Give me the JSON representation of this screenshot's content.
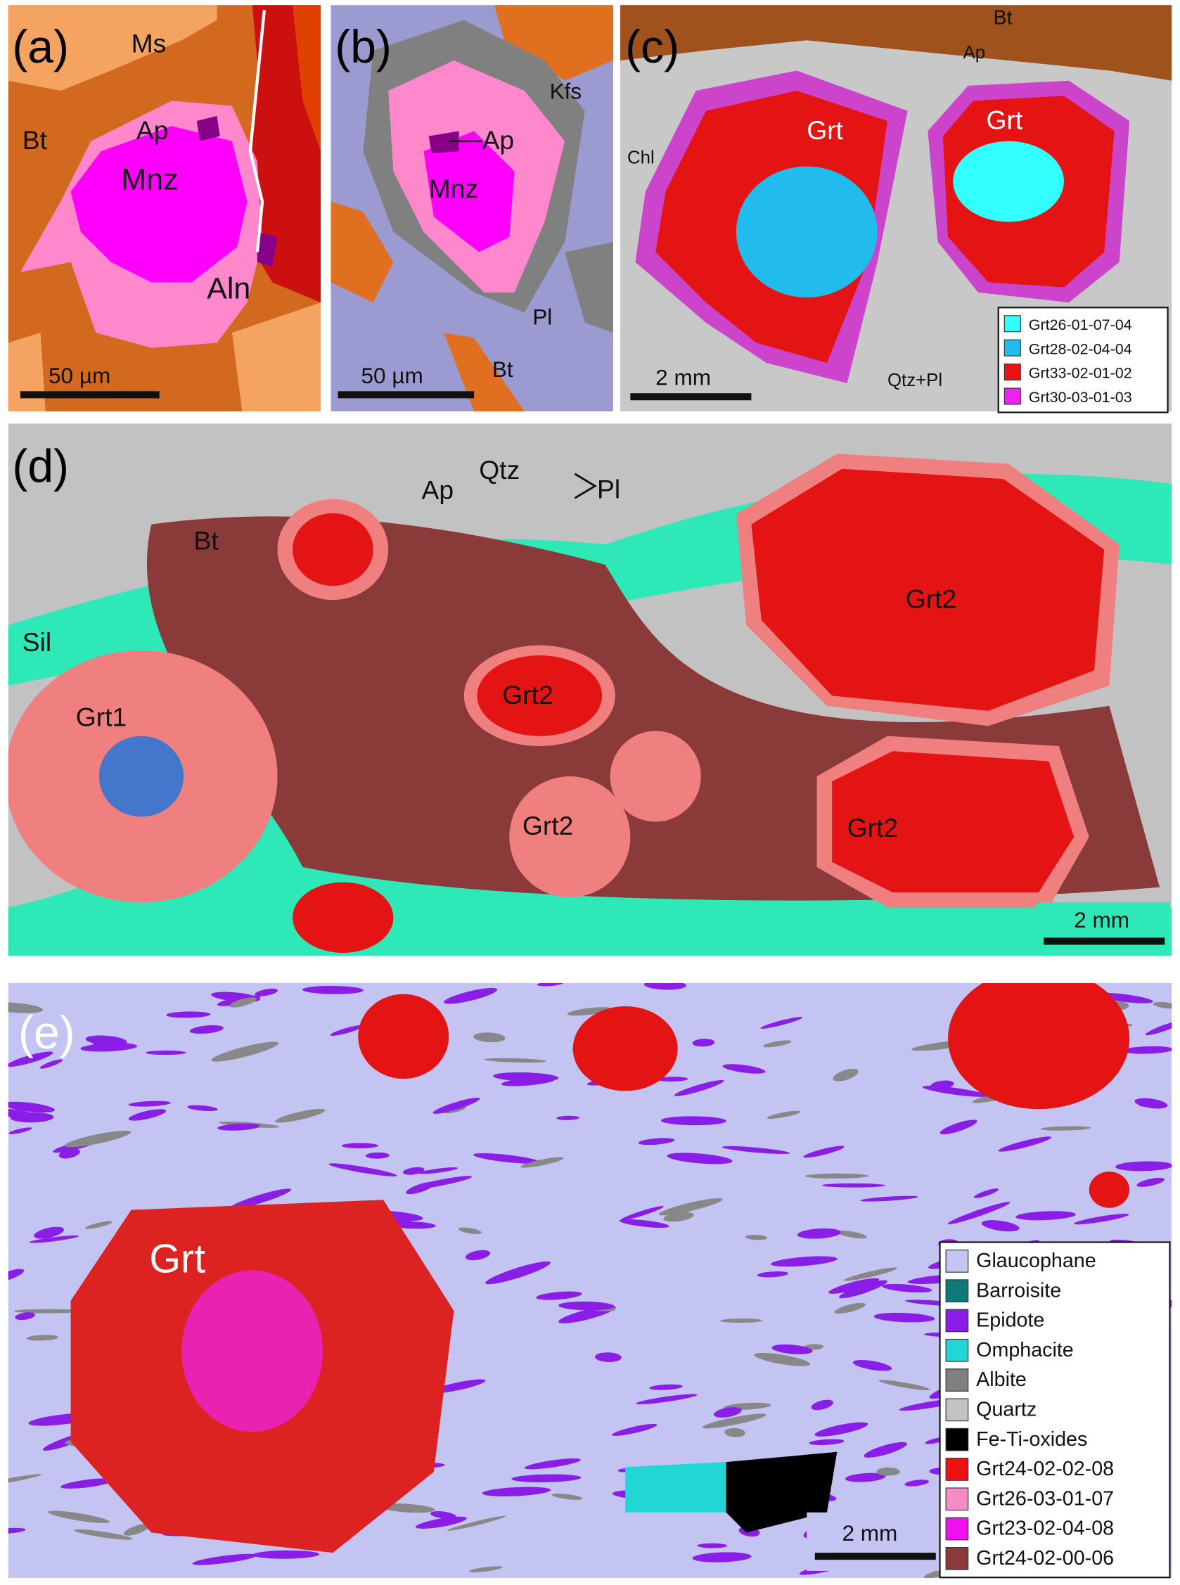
{
  "panel_a": {
    "label": "(a)",
    "scale_bar": "50 µm",
    "labels": [
      "Ms",
      "Bt",
      "Ap",
      "Mnz",
      "Aln"
    ]
  },
  "panel_b": {
    "label": "(b)",
    "scale_bar": "50 µm",
    "labels": [
      "Kfs",
      "Ap",
      "Mnz",
      "Pl",
      "Bt"
    ]
  },
  "panel_c": {
    "label": "(c)",
    "scale_bar": "2 mm",
    "labels": [
      "Bt",
      "Ap",
      "Grt",
      "Grt",
      "Chl",
      "Qtz+Pl"
    ],
    "legend": [
      {
        "name": "Grt26-01-07-04",
        "color": "#33ffff"
      },
      {
        "name": "Grt28-02-04-04",
        "color": "#22bbee"
      },
      {
        "name": "Grt33-02-01-02",
        "color": "#ee1111"
      },
      {
        "name": "Grt30-03-01-03",
        "color": "#ee22ee"
      }
    ]
  },
  "panel_d": {
    "label": "(d)",
    "scale_bar": "2 mm",
    "labels": [
      "Ap",
      "Qtz",
      "Pl",
      "Bt",
      "Sil",
      "Grt1",
      "Grt2",
      "Grt2",
      "Grt2",
      "Grt2"
    ]
  },
  "panel_e": {
    "label": "(e)",
    "scale_bar": "2 mm",
    "labels": [
      "Grt"
    ],
    "legend": [
      {
        "name": "Glaucophane",
        "color": "#c4c4f2"
      },
      {
        "name": "Barroisite",
        "color": "#0d7a7a"
      },
      {
        "name": "Epidote",
        "color": "#8a1ee6"
      },
      {
        "name": "Omphacite",
        "color": "#22d6d6"
      },
      {
        "name": "Albite",
        "color": "#808080"
      },
      {
        "name": "Quartz",
        "color": "#c2c2c2"
      },
      {
        "name": "Fe-Ti-oxides",
        "color": "#000000"
      },
      {
        "name": "Grt24-02-02-08",
        "color": "#ee1111"
      },
      {
        "name": "Grt26-03-01-07",
        "color": "#f58cc8"
      },
      {
        "name": "Grt23-02-04-08",
        "color": "#ee11ee"
      },
      {
        "name": "Grt24-02-00-06",
        "color": "#8b3a3a"
      }
    ]
  }
}
